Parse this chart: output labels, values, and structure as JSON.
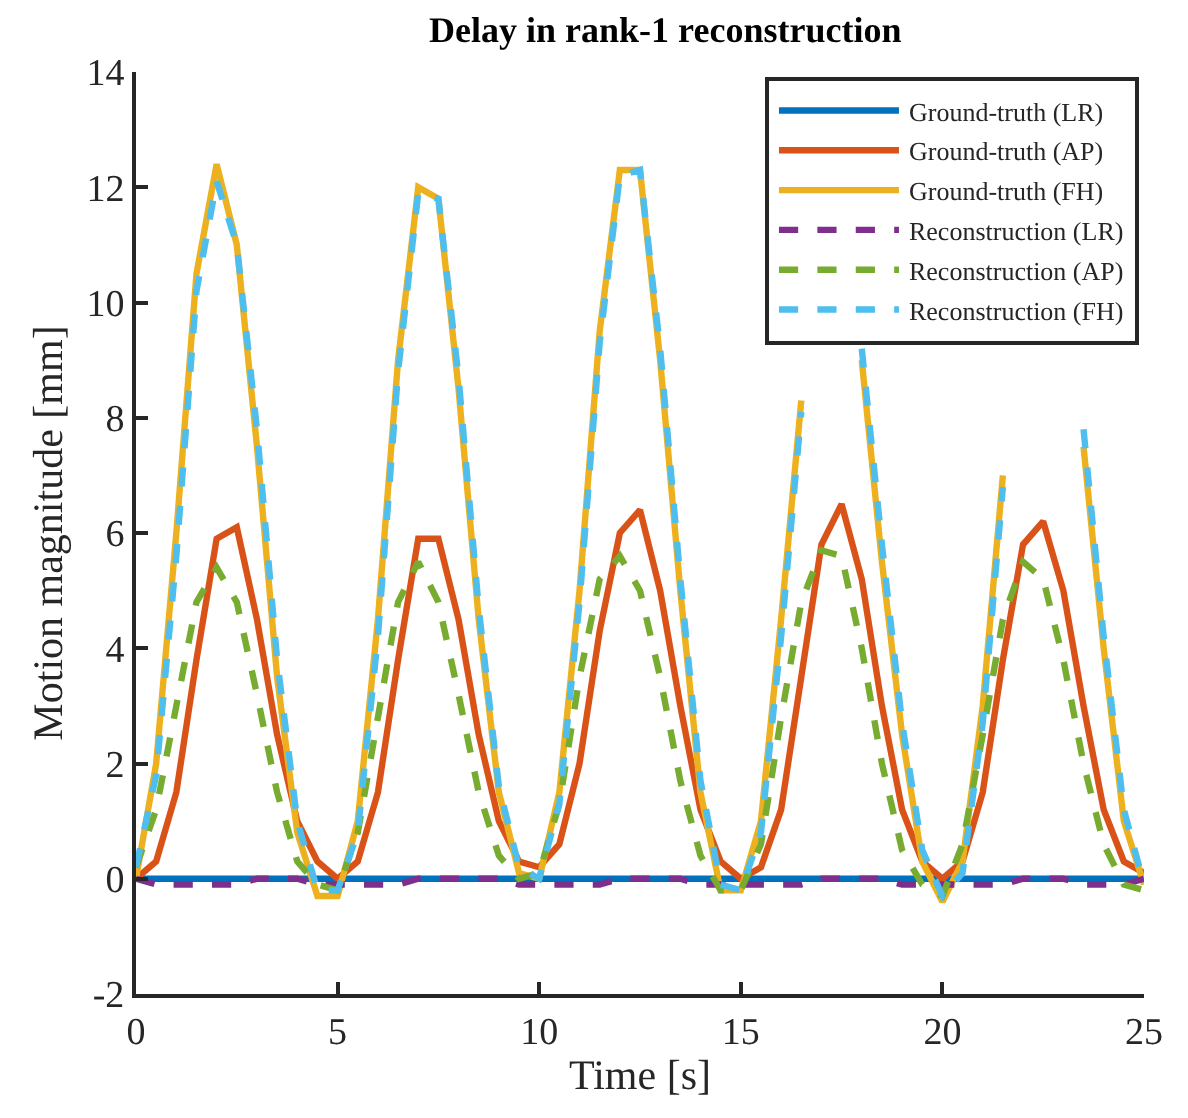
{
  "chart_data": {
    "type": "line",
    "title": "Delay in rank-1 reconstruction",
    "xlabel": "Time [s]",
    "ylabel": "Motion magnitude [mm]",
    "x": [
      0,
      0.5,
      1,
      1.5,
      2,
      2.5,
      3,
      3.5,
      4,
      4.5,
      5,
      5.5,
      6,
      6.5,
      7,
      7.5,
      8,
      8.5,
      9,
      9.5,
      10,
      10.5,
      11,
      11.5,
      12,
      12.5,
      13,
      13.5,
      14,
      14.5,
      15,
      15.5,
      16,
      16.5,
      17,
      17.5,
      18,
      18.5,
      19,
      19.5,
      20,
      20.5,
      21,
      21.5,
      22,
      22.5,
      23,
      23.5,
      24,
      24.5,
      25
    ],
    "series": [
      {
        "name": "Ground-truth (LR)",
        "color": "#0072bd",
        "line_style": "solid",
        "values": [
          0,
          0,
          0,
          0,
          0,
          0,
          0,
          0,
          0,
          0,
          0,
          0,
          0,
          0,
          0,
          0,
          0,
          0,
          0,
          0,
          0,
          0,
          0,
          0,
          0,
          0,
          0,
          0,
          0,
          0,
          0,
          0,
          0,
          0,
          0,
          0,
          0,
          0,
          0,
          0,
          0,
          0,
          0,
          0,
          0,
          0,
          0,
          0,
          0,
          0,
          0
        ]
      },
      {
        "name": "Ground-truth (AP)",
        "color": "#d95319",
        "line_style": "solid",
        "values": [
          0,
          0.3,
          1.5,
          3.8,
          5.9,
          6.1,
          4.5,
          2.5,
          1.0,
          0.3,
          0.0,
          0.3,
          1.5,
          3.8,
          5.9,
          5.9,
          4.5,
          2.5,
          1.0,
          0.3,
          0.2,
          0.6,
          2.0,
          4.3,
          6.0,
          6.4,
          5.0,
          3.0,
          1.2,
          0.3,
          0.0,
          0.2,
          1.2,
          3.5,
          5.8,
          6.5,
          5.2,
          3.0,
          1.2,
          0.3,
          0.0,
          0.3,
          1.5,
          3.8,
          5.8,
          6.2,
          5.0,
          3.0,
          1.2,
          0.3,
          0.1
        ]
      },
      {
        "name": "Ground-truth (FH)",
        "color": "#edb120",
        "line_style": "solid",
        "values": [
          0,
          2.0,
          6.0,
          10.5,
          12.4,
          11.0,
          7.5,
          3.5,
          0.8,
          -0.3,
          -0.3,
          1.0,
          4.5,
          9.0,
          12.0,
          11.8,
          8.5,
          4.5,
          1.5,
          0.1,
          0.0,
          1.5,
          5.0,
          9.5,
          12.3,
          12.3,
          9.0,
          5.0,
          1.5,
          -0.2,
          -0.2,
          1.0,
          4.5,
          8.3,
          null,
          null,
          9.0,
          5.5,
          2.5,
          0.3,
          -0.4,
          0.3,
          3.0,
          7.0,
          null,
          null,
          null,
          7.5,
          4.0,
          1.0,
          -0.1
        ]
      },
      {
        "name": "Reconstruction (LR)",
        "color": "#7e2f8e",
        "line_style": "dashed",
        "values": [
          0,
          -0.1,
          -0.1,
          -0.1,
          -0.1,
          -0.1,
          0,
          0,
          0,
          -0.1,
          -0.1,
          -0.1,
          -0.1,
          -0.1,
          0,
          0,
          0,
          0,
          0,
          -0.1,
          -0.1,
          -0.1,
          -0.1,
          -0.1,
          0,
          0,
          0,
          0,
          -0.1,
          -0.1,
          -0.1,
          -0.1,
          -0.1,
          -0.1,
          0,
          0,
          0,
          0,
          -0.1,
          -0.1,
          -0.1,
          -0.1,
          -0.1,
          -0.1,
          0,
          0,
          0,
          -0.1,
          -0.1,
          -0.1,
          0
        ]
      },
      {
        "name": "Reconstruction (AP)",
        "color": "#77ac30",
        "line_style": "dashed",
        "values": [
          0.2,
          1.2,
          3.0,
          4.8,
          5.4,
          4.8,
          3.2,
          1.5,
          0.3,
          -0.1,
          -0.2,
          0.8,
          2.8,
          4.8,
          5.5,
          4.8,
          3.2,
          1.5,
          0.4,
          0.0,
          0.1,
          1.3,
          3.5,
          5.2,
          5.6,
          5.0,
          3.5,
          1.7,
          0.4,
          -0.2,
          -0.2,
          0.6,
          2.8,
          4.8,
          5.7,
          5.6,
          4.0,
          2.0,
          0.5,
          -0.1,
          -0.3,
          0.6,
          2.5,
          4.5,
          5.5,
          5.2,
          3.8,
          2.0,
          0.6,
          -0.1,
          -0.2
        ]
      },
      {
        "name": "Reconstruction (FH)",
        "color": "#4dbeee",
        "line_style": "dashed",
        "values": [
          0.2,
          1.8,
          5.6,
          10.2,
          12.1,
          11.0,
          7.8,
          3.8,
          1.0,
          -0.2,
          -0.2,
          0.8,
          4.2,
          8.8,
          11.9,
          11.8,
          8.7,
          4.7,
          1.6,
          0.2,
          0.0,
          1.3,
          4.8,
          9.3,
          12.2,
          12.3,
          9.2,
          5.2,
          1.7,
          -0.1,
          -0.2,
          0.8,
          4.2,
          8.1,
          null,
          null,
          9.2,
          5.8,
          2.7,
          0.5,
          -0.3,
          0.1,
          2.7,
          6.8,
          null,
          null,
          null,
          7.8,
          4.2,
          1.2,
          -0.1
        ]
      }
    ],
    "xlim": [
      0,
      25
    ],
    "xticks": [
      0,
      5,
      10,
      15,
      20,
      25
    ],
    "ylim": [
      -2,
      14
    ],
    "yticks": [
      -2,
      0,
      2,
      4,
      6,
      8,
      10,
      12,
      14
    ],
    "legend": "top right",
    "marker": "none"
  }
}
